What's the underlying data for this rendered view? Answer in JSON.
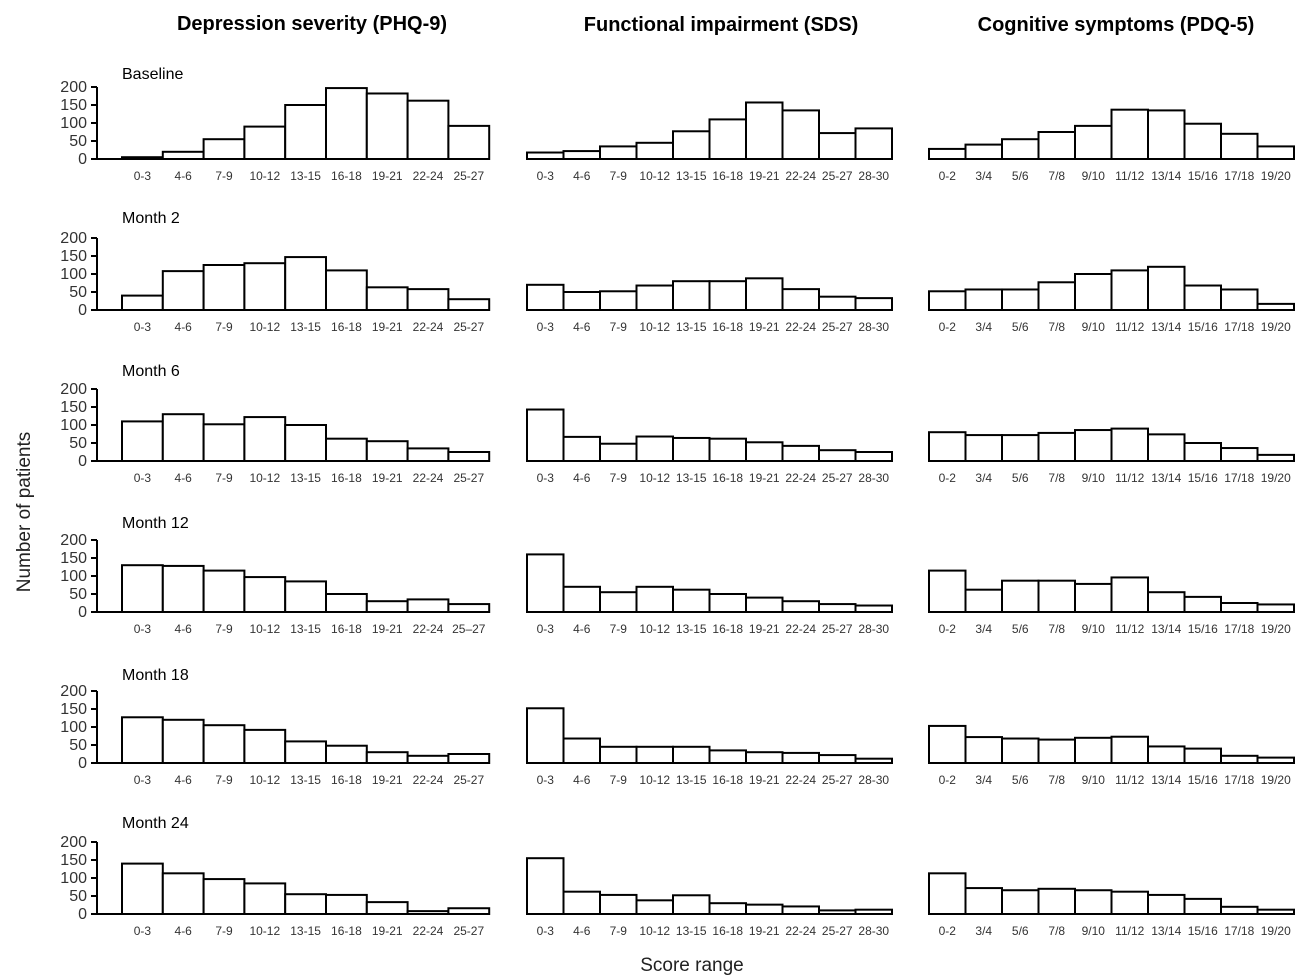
{
  "chart_data": {
    "type": "bar",
    "ylabel": "Number of patients",
    "xlabel": "Score range",
    "ylim": [
      0,
      200
    ],
    "yticks": [
      0,
      50,
      100,
      150,
      200
    ],
    "columns": [
      {
        "title": "Depression severity (PHQ-9)",
        "charts": [
          {
            "row": "Baseline",
            "categories": [
              "0-3",
              "4-6",
              "7-9",
              "10-12",
              "13-15",
              "16-18",
              "19-21",
              "22-24",
              "25-27"
            ],
            "values": [
              5,
              20,
              55,
              90,
              150,
              197,
              182,
              162,
              92
            ]
          },
          {
            "row": "Month 2",
            "categories": [
              "0-3",
              "4-6",
              "7-9",
              "10-12",
              "13-15",
              "16-18",
              "19-21",
              "22-24",
              "25-27"
            ],
            "values": [
              40,
              108,
              125,
              130,
              147,
              110,
              63,
              58,
              30
            ]
          },
          {
            "row": "Month 6",
            "categories": [
              "0-3",
              "4-6",
              "7-9",
              "10-12",
              "13-15",
              "16-18",
              "19-21",
              "22-24",
              "25-27"
            ],
            "values": [
              110,
              130,
              102,
              122,
              100,
              62,
              55,
              35,
              25
            ]
          },
          {
            "row": "Month 12",
            "categories": [
              "0-3",
              "4-6",
              "7-9",
              "10-12",
              "13-15",
              "16-18",
              "19-21",
              "22-24",
              "25–27"
            ],
            "values": [
              130,
              128,
              115,
              97,
              85,
              50,
              30,
              35,
              22
            ]
          },
          {
            "row": "Month 18",
            "categories": [
              "0-3",
              "4-6",
              "7-9",
              "10-12",
              "13-15",
              "16-18",
              "19-21",
              "22-24",
              "25-27"
            ],
            "values": [
              127,
              120,
              105,
              92,
              60,
              48,
              30,
              20,
              25
            ]
          },
          {
            "row": "Month 24",
            "categories": [
              "0-3",
              "4-6",
              "7-9",
              "10-12",
              "13-15",
              "16-18",
              "19-21",
              "22-24",
              "25-27"
            ],
            "values": [
              140,
              113,
              97,
              85,
              55,
              53,
              33,
              8,
              16
            ]
          }
        ]
      },
      {
        "title": "Functional impairment (SDS)",
        "charts": [
          {
            "categories": [
              "0-3",
              "4-6",
              "7-9",
              "10-12",
              "13-15",
              "16-18",
              "19-21",
              "22-24",
              "25-27",
              "28-30"
            ],
            "values": [
              18,
              22,
              35,
              45,
              77,
              110,
              157,
              135,
              72,
              85
            ]
          },
          {
            "categories": [
              "0-3",
              "4-6",
              "7-9",
              "10-12",
              "13-15",
              "16-18",
              "19-21",
              "22-24",
              "25-27",
              "28-30"
            ],
            "values": [
              70,
              50,
              52,
              68,
              80,
              80,
              88,
              58,
              37,
              33
            ]
          },
          {
            "categories": [
              "0-3",
              "4-6",
              "7-9",
              "10-12",
              "13-15",
              "16-18",
              "19-21",
              "22-24",
              "25-27",
              "28-30"
            ],
            "values": [
              143,
              67,
              48,
              68,
              64,
              62,
              52,
              42,
              30,
              25
            ]
          },
          {
            "categories": [
              "0-3",
              "4-6",
              "7-9",
              "10-12",
              "13-15",
              "16-18",
              "19-21",
              "22-24",
              "25-27",
              "28-30"
            ],
            "values": [
              160,
              70,
              55,
              70,
              62,
              50,
              40,
              30,
              22,
              18
            ]
          },
          {
            "categories": [
              "0-3",
              "4-6",
              "7-9",
              "10-12",
              "13-15",
              "16-18",
              "19-21",
              "22-24",
              "25-27",
              "28-30"
            ],
            "values": [
              152,
              68,
              45,
              45,
              45,
              35,
              30,
              28,
              22,
              12
            ]
          },
          {
            "categories": [
              "0-3",
              "4-6",
              "7-9",
              "10-12",
              "13-15",
              "16-18",
              "19-21",
              "22-24",
              "25-27",
              "28-30"
            ],
            "values": [
              155,
              62,
              53,
              38,
              52,
              30,
              26,
              21,
              10,
              12
            ]
          }
        ]
      },
      {
        "title": "Cognitive symptoms (PDQ-5)",
        "charts": [
          {
            "categories": [
              "0-2",
              "3/4",
              "5/6",
              "7/8",
              "9/10",
              "11/12",
              "13/14",
              "15/16",
              "17/18",
              "19/20"
            ],
            "values": [
              28,
              40,
              55,
              75,
              92,
              137,
              135,
              98,
              70,
              35
            ]
          },
          {
            "categories": [
              "0-2",
              "3/4",
              "5/6",
              "7/8",
              "9/10",
              "11/12",
              "13/14",
              "15/16",
              "17/18",
              "19/20"
            ],
            "values": [
              52,
              57,
              57,
              77,
              100,
              110,
              120,
              68,
              57,
              17
            ]
          },
          {
            "categories": [
              "0-2",
              "3/4",
              "5/6",
              "7/8",
              "9/10",
              "11/12",
              "13/14",
              "15/16",
              "17/18",
              "19/20"
            ],
            "values": [
              80,
              72,
              72,
              78,
              86,
              90,
              74,
              50,
              36,
              17
            ]
          },
          {
            "categories": [
              "0-2",
              "3/4",
              "5/6",
              "7/8",
              "9/10",
              "11/12",
              "13/14",
              "15/16",
              "17/18",
              "19/20"
            ],
            "values": [
              115,
              62,
              87,
              87,
              78,
              96,
              55,
              42,
              25,
              21
            ]
          },
          {
            "categories": [
              "0-2",
              "3/4",
              "5/6",
              "7/8",
              "9/10",
              "11/12",
              "13/14",
              "15/16",
              "17/18",
              "19/20"
            ],
            "values": [
              103,
              72,
              68,
              65,
              70,
              73,
              46,
              40,
              20,
              15
            ]
          },
          {
            "categories": [
              "0-2",
              "3/4",
              "5/6",
              "7/8",
              "9/10",
              "11/12",
              "13/14",
              "15/16",
              "17/18",
              "19/20"
            ],
            "values": [
              113,
              72,
              66,
              70,
              66,
              62,
              53,
              42,
              20,
              12
            ]
          }
        ]
      }
    ]
  }
}
